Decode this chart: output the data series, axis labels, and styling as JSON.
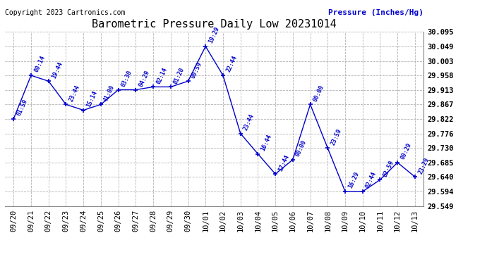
{
  "title": "Barometric Pressure Daily Low 20231014",
  "ylabel": "Pressure (Inches/Hg)",
  "copyright": "Copyright 2023 Cartronics.com",
  "line_color": "#0000cc",
  "background_color": "#ffffff",
  "grid_color": "#aaaaaa",
  "text_color_blue": "#0000cc",
  "text_color_black": "#000000",
  "ylim_min": 29.549,
  "ylim_max": 30.095,
  "yticks": [
    29.549,
    29.594,
    29.64,
    29.685,
    29.73,
    29.776,
    29.822,
    29.867,
    29.913,
    29.958,
    30.003,
    30.049,
    30.095
  ],
  "dates": [
    "09/20",
    "09/21",
    "09/22",
    "09/23",
    "09/24",
    "09/25",
    "09/26",
    "09/27",
    "09/28",
    "09/29",
    "09/30",
    "10/01",
    "10/02",
    "10/03",
    "10/04",
    "10/05",
    "10/06",
    "10/07",
    "10/08",
    "10/09",
    "10/10",
    "10/11",
    "10/12",
    "10/13"
  ],
  "values": [
    29.822,
    29.958,
    29.94,
    29.867,
    29.849,
    29.867,
    29.913,
    29.913,
    29.922,
    29.922,
    29.94,
    30.049,
    29.958,
    29.776,
    29.712,
    29.649,
    29.694,
    29.867,
    29.73,
    29.594,
    29.594,
    29.631,
    29.685,
    29.64
  ],
  "annotations": [
    "01:59",
    "00:14",
    "19:44",
    "23:44",
    "15:14",
    "41:00",
    "03:30",
    "04:29",
    "02:14",
    "01:20",
    "00:59",
    "19:29",
    "22:44",
    "23:44",
    "16:44",
    "17:44",
    "00:00",
    "00:00",
    "23:59",
    "16:29",
    "02:44",
    "03:59",
    "00:29",
    "23:29"
  ],
  "title_fontsize": 11,
  "annotation_fontsize": 6,
  "tick_fontsize": 7.5,
  "ylabel_text_fontsize": 8,
  "copyright_fontsize": 7
}
